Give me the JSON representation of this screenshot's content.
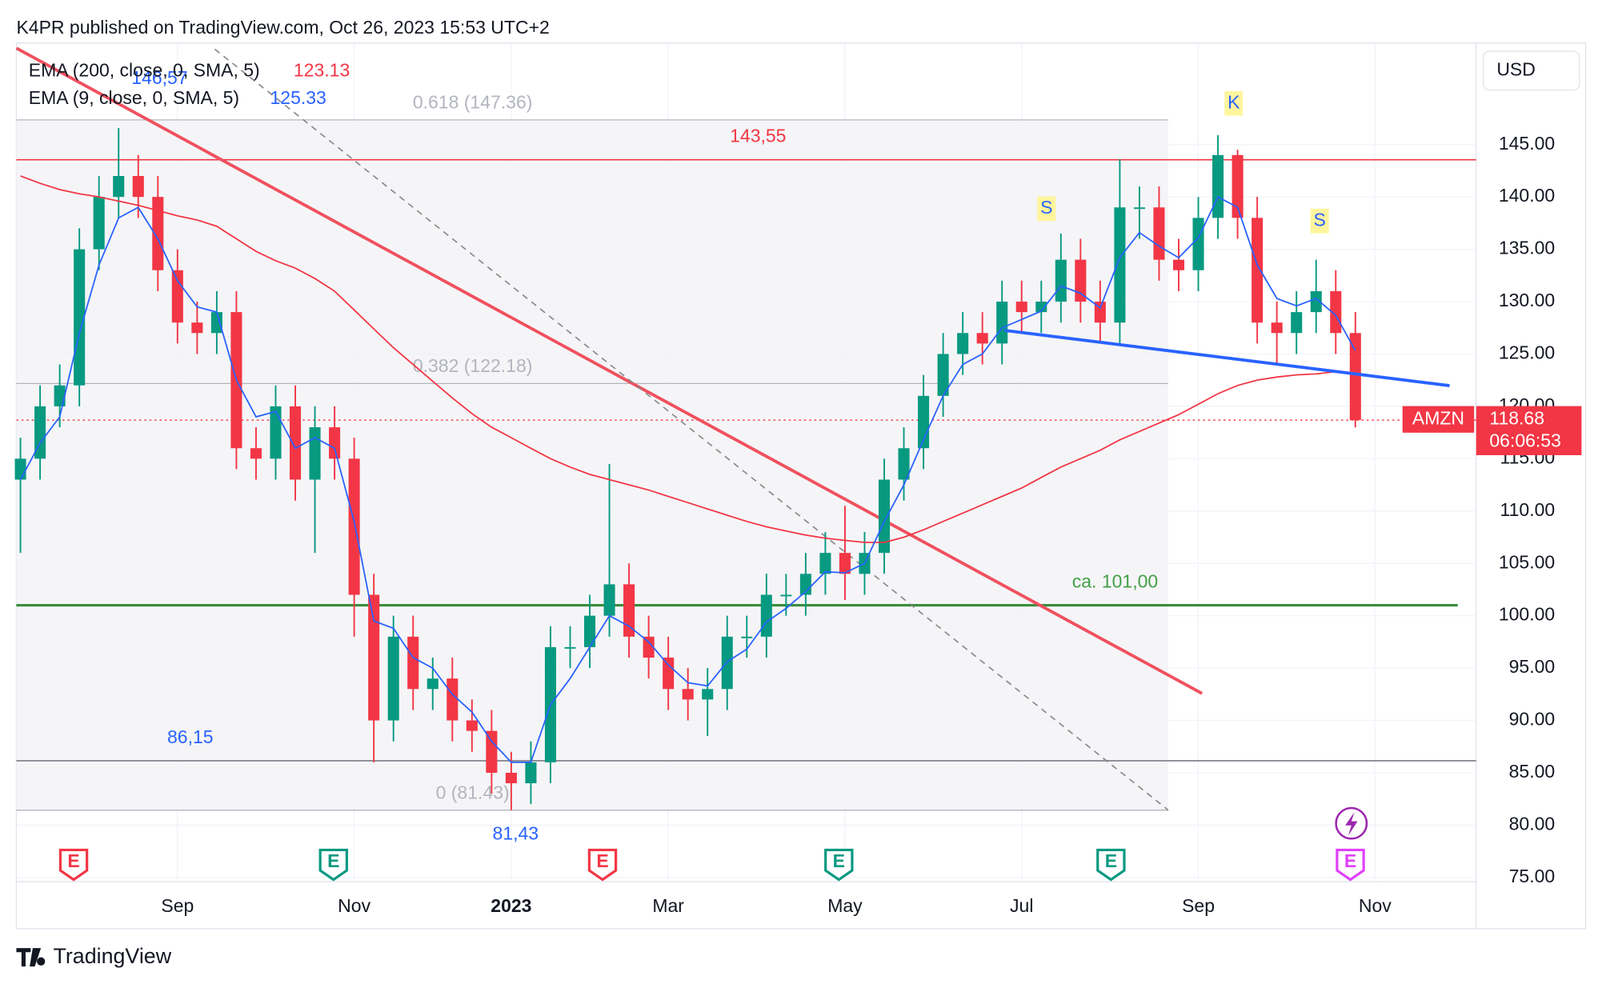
{
  "header": "K4PR published on TradingView.com, Oct 26, 2023 15:53 UTC+2",
  "footer": "TradingView",
  "chart_data": {
    "type": "candlestick",
    "symbol": "AMZN",
    "currency": "USD",
    "countdown": "06:06:53",
    "up_color": "#089981",
    "down_color": "#f23645",
    "categories": [
      null,
      null,
      null,
      null,
      null,
      null,
      null,
      null,
      "Sep",
      null,
      null,
      null,
      null,
      null,
      null,
      null,
      null,
      "Nov",
      null,
      null,
      null,
      null,
      null,
      null,
      null,
      "2023",
      null,
      null,
      null,
      null,
      null,
      null,
      null,
      "Mar",
      null,
      null,
      null,
      null,
      null,
      null,
      null,
      null,
      "May",
      null,
      null,
      null,
      null,
      null,
      null,
      null,
      null,
      "Jul",
      null,
      null,
      null,
      null,
      null,
      null,
      null,
      null,
      "Sep",
      null,
      null,
      null,
      null,
      null,
      null,
      null,
      null,
      "Nov",
      null,
      null,
      null,
      null
    ],
    "open": [
      113,
      115,
      120,
      122,
      135,
      140,
      142,
      140,
      133,
      128,
      127,
      129,
      116,
      115,
      120,
      113,
      118,
      115,
      102,
      90,
      98,
      93,
      94,
      90,
      89,
      85,
      84,
      86,
      97,
      97,
      100,
      103,
      98,
      96,
      93,
      92,
      93,
      98,
      98,
      102,
      102,
      104,
      106,
      104,
      106,
      113,
      116,
      121,
      125,
      127,
      126,
      130,
      129,
      130,
      134,
      130,
      128,
      139,
      139,
      134,
      133,
      138,
      144,
      138,
      128,
      127,
      129,
      131,
      127,
      null,
      null,
      null,
      null,
      null
    ],
    "high": [
      117,
      122,
      124,
      137,
      142,
      146.57,
      144,
      142,
      135,
      130,
      131,
      131,
      118,
      122,
      122,
      120,
      120,
      117,
      104,
      100,
      100,
      96,
      96,
      92,
      91,
      87,
      88,
      99,
      99,
      102,
      114.5,
      105,
      100,
      98,
      95,
      95,
      100,
      100,
      104,
      104,
      106,
      108,
      110.5,
      108,
      115,
      118,
      123,
      127,
      129,
      129,
      132,
      132,
      132,
      136.5,
      136,
      132,
      143.6,
      141,
      141,
      136,
      140,
      145.9,
      144.5,
      140,
      130,
      131,
      134,
      133,
      129,
      null,
      null,
      null,
      null,
      null
    ],
    "low": [
      106,
      113,
      118,
      120,
      133,
      138,
      138,
      131,
      126,
      125,
      125,
      114,
      113,
      113,
      111,
      106,
      113,
      98,
      86,
      88,
      91,
      91,
      88,
      87,
      83,
      81.43,
      82,
      84,
      95,
      95,
      98,
      96,
      94,
      91,
      90,
      88.5,
      91,
      96,
      96,
      100,
      100,
      102,
      101.5,
      102,
      104,
      111,
      114,
      119,
      123,
      124,
      124,
      127,
      127,
      128,
      128,
      126,
      126,
      136,
      132,
      131,
      131,
      136,
      136,
      126,
      124,
      125,
      127,
      125,
      118,
      null,
      null,
      null,
      null,
      null
    ],
    "close": [
      115,
      120,
      122,
      135,
      140,
      142,
      140,
      133,
      128,
      127,
      129,
      116,
      115,
      120,
      113,
      118,
      115,
      102,
      90,
      98,
      93,
      94,
      90,
      89,
      85,
      84,
      86,
      97,
      97,
      100,
      103,
      98,
      96,
      93,
      92,
      93,
      98,
      98,
      102,
      102,
      104,
      106,
      104,
      106,
      113,
      116,
      121,
      125,
      127,
      126,
      130,
      129,
      130,
      134,
      130,
      128,
      139,
      139,
      134,
      133,
      138,
      144,
      138,
      128,
      127,
      129,
      131,
      127,
      118.68,
      null,
      null,
      null,
      null,
      null
    ],
    "series": [
      {
        "name": "EMA (200, close, 0, SMA, 5)",
        "color": "#f23645",
        "values": [
          142,
          141.3,
          140.7,
          140.3,
          140,
          139.6,
          139.2,
          138.7,
          138.2,
          137.8,
          137.2,
          136,
          134.8,
          133.9,
          133.2,
          132.2,
          131,
          129.2,
          127.4,
          125.6,
          124,
          122.4,
          120.8,
          119.3,
          118,
          117,
          116,
          115,
          114.2,
          113.5,
          113,
          112.5,
          112,
          111.4,
          110.8,
          110.2,
          109.6,
          109,
          108.5,
          108.1,
          107.7,
          107.4,
          107.2,
          107,
          107,
          107.5,
          108.2,
          109,
          109.8,
          110.6,
          111.4,
          112.2,
          113.2,
          114.2,
          115,
          115.8,
          116.8,
          117.6,
          118.4,
          119.2,
          120.2,
          121.2,
          122,
          122.5,
          122.8,
          123,
          123.1,
          123.3,
          123.13,
          null,
          null,
          null,
          null,
          null
        ]
      },
      {
        "name": "EMA (9, close, 0, SMA, 5)",
        "color": "#2962ff",
        "values": [
          113,
          116.5,
          119,
          127,
          133.5,
          138,
          139,
          136,
          132,
          129.5,
          129,
          122.5,
          119,
          119.5,
          116,
          117,
          116,
          109,
          99.5,
          98.8,
          96,
          95,
          92.5,
          90.8,
          88,
          86,
          86,
          91.5,
          94,
          97,
          100,
          99,
          97.5,
          95.3,
          93.6,
          93.3,
          95.6,
          96.8,
          99.4,
          100.7,
          102.3,
          104.2,
          104.1,
          105,
          109,
          112.5,
          116.8,
          121,
          124,
          125,
          127.5,
          128.3,
          129.1,
          131.5,
          130.8,
          129.4,
          134.2,
          136.6,
          135.3,
          134.2,
          136.1,
          140,
          139,
          133.5,
          130.3,
          129.6,
          130.3,
          128.7,
          125.33,
          null,
          null,
          null,
          null,
          null
        ]
      }
    ],
    "ylim": [
      74.6,
      154.7
    ],
    "yticks": [
      {
        "value": 75,
        "label": "75.00"
      },
      {
        "value": 80,
        "label": "80.00"
      },
      {
        "value": 85,
        "label": "85.00"
      },
      {
        "value": 90,
        "label": "90.00"
      },
      {
        "value": 95,
        "label": "95.00"
      },
      {
        "value": 100,
        "label": "100.00"
      },
      {
        "value": 105,
        "label": "105.00"
      },
      {
        "value": 110,
        "label": "110.00"
      },
      {
        "value": 115,
        "label": "115.00"
      },
      {
        "value": 120,
        "label": "120.00"
      },
      {
        "value": 125,
        "label": "125.00"
      },
      {
        "value": 130,
        "label": "130.00"
      },
      {
        "value": 135,
        "label": "135.00"
      },
      {
        "value": 140,
        "label": "140.00"
      },
      {
        "value": 145,
        "label": "145.00"
      }
    ],
    "grid": true,
    "levels": [
      {
        "value": 143.55,
        "label": "143,55",
        "color": "#f23645"
      },
      {
        "value": 101,
        "label": "ca. 101,00",
        "color": "#388e3c"
      },
      {
        "value": 86.15,
        "label": "86,15",
        "color": "#787b86"
      }
    ],
    "fib_levels": [
      {
        "value": 147.36,
        "label": "0.618 (147.36)"
      },
      {
        "value": 122.18,
        "label": "0.382 (122.18)"
      },
      {
        "value": 81.43,
        "label": "0 (81.43)"
      }
    ],
    "price_notes": [
      {
        "value": 146.57,
        "label": "146,57"
      },
      {
        "value": 81.43,
        "label": "81,43"
      }
    ],
    "patterns": [
      "S",
      "K",
      "S"
    ],
    "events": [
      {
        "label": "E",
        "color": "#f23645"
      },
      {
        "label": "E",
        "color": "#089981"
      },
      {
        "label": "E",
        "color": "#f23645"
      },
      {
        "label": "E",
        "color": "#089981"
      },
      {
        "label": "E",
        "color": "#089981"
      },
      {
        "label": "E",
        "color": "#e040fb"
      }
    ]
  }
}
